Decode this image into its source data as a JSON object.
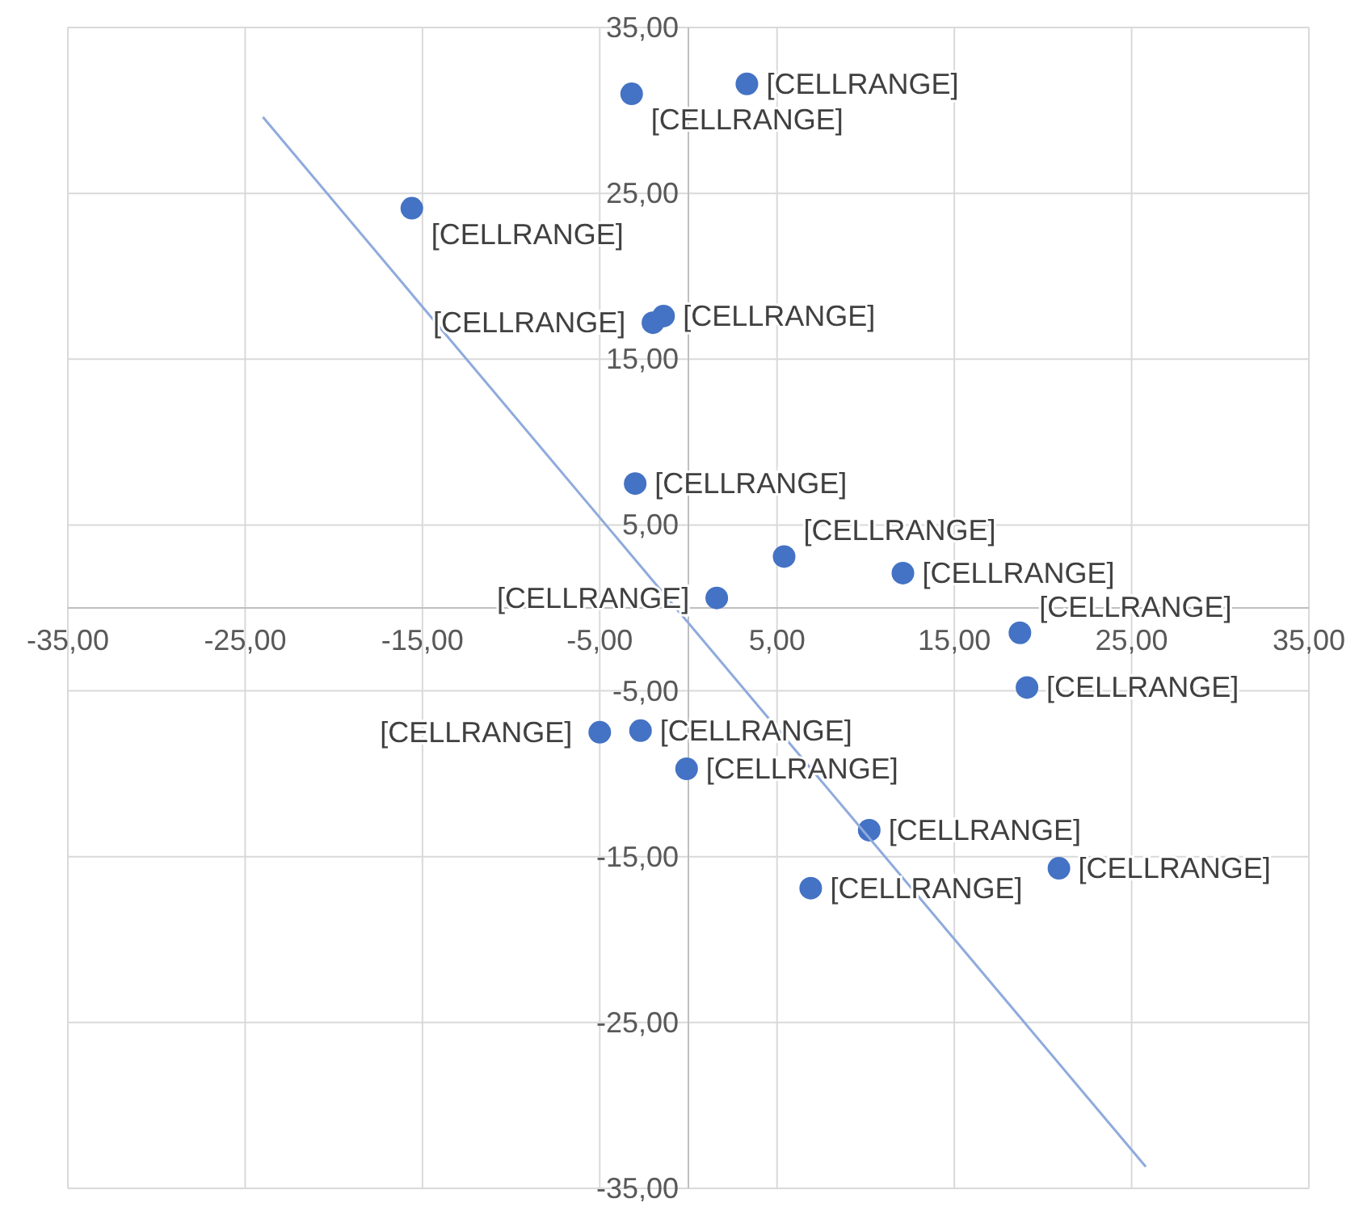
{
  "chart_data": {
    "type": "scatter",
    "xlim": [
      -35,
      35
    ],
    "ylim": [
      -35,
      35
    ],
    "xticks": [
      {
        "value": -35,
        "label": "-35,00"
      },
      {
        "value": -25,
        "label": "-25,00"
      },
      {
        "value": -15,
        "label": "-15,00"
      },
      {
        "value": -5,
        "label": "-5,00"
      },
      {
        "value": 5,
        "label": "5,00"
      },
      {
        "value": 15,
        "label": "15,00"
      },
      {
        "value": 25,
        "label": "25,00"
      },
      {
        "value": 35,
        "label": "35,00"
      }
    ],
    "yticks": [
      {
        "value": -35,
        "label": "-35,00"
      },
      {
        "value": -25,
        "label": "-25,00"
      },
      {
        "value": -15,
        "label": "-15,00"
      },
      {
        "value": -5,
        "label": "-5,00"
      },
      {
        "value": 5,
        "label": "5,00"
      },
      {
        "value": 15,
        "label": "15,00"
      },
      {
        "value": 25,
        "label": "25,00"
      },
      {
        "value": 35,
        "label": "35,00"
      }
    ],
    "grid": true,
    "marker": "circle",
    "series": [
      {
        "color": "#4472c4",
        "x": [
          -3.2,
          3.3,
          -15.6,
          -1.4,
          -2.0,
          -3.0,
          5.4,
          12.1,
          1.6,
          18.7,
          19.1,
          -5.0,
          -2.7,
          -0.1,
          10.2,
          6.9,
          20.9
        ],
        "values": [
          31.0,
          31.6,
          24.1,
          17.6,
          17.2,
          7.5,
          3.1,
          2.1,
          0.6,
          -1.5,
          -4.8,
          -7.5,
          -7.4,
          -9.7,
          -13.4,
          -16.9,
          -15.7
        ],
        "value_labels": [
          "[CELLRANGE]",
          "[CELLRANGE]",
          "[CELLRANGE]",
          "[CELLRANGE]",
          "[CELLRANGE]",
          "[CELLRANGE]",
          "[CELLRANGE]",
          "[CELLRANGE]",
          "[CELLRANGE]",
          "[CELLRANGE]",
          "[CELLRANGE]",
          "[CELLRANGE]",
          "[CELLRANGE]",
          "[CELLRANGE]",
          "[CELLRANGE]",
          "[CELLRANGE]",
          "[CELLRANGE]"
        ]
      },
      {
        "type": "line",
        "color": "#8faadc",
        "marker": "none",
        "x": [
          -24.0,
          25.8
        ],
        "values": [
          29.6,
          -33.7
        ]
      }
    ]
  }
}
